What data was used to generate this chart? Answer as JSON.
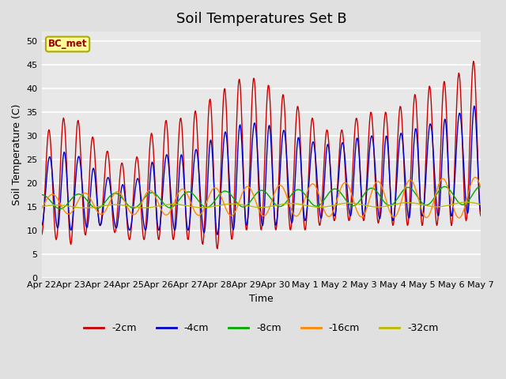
{
  "title": "Soil Temperatures Set B",
  "xlabel": "Time",
  "ylabel": "Soil Temperature (C)",
  "ylim": [
    0,
    52
  ],
  "yticks": [
    0,
    5,
    10,
    15,
    20,
    25,
    30,
    35,
    40,
    45,
    50
  ],
  "x_labels": [
    "Apr 22",
    "Apr 23",
    "Apr 24",
    "Apr 25",
    "Apr 26",
    "Apr 27",
    "Apr 28",
    "Apr 29",
    "Apr 30",
    "May 1",
    "May 2",
    "May 3",
    "May 4",
    "May 5",
    "May 6",
    "May 7"
  ],
  "annotation_text": "BC_met",
  "annotation_color": "#990000",
  "annotation_bg": "#ffff99",
  "line_colors": {
    "-2cm": "#cc0000",
    "-4cm": "#0000cc",
    "-8cm": "#00aa00",
    "-16cm": "#ff8800",
    "-32cm": "#bbbb00"
  },
  "bg_color": "#e0e0e0",
  "plot_bg": "#e8e8e8",
  "title_fontsize": 13,
  "n_days": 16,
  "samples_per_day": 48
}
